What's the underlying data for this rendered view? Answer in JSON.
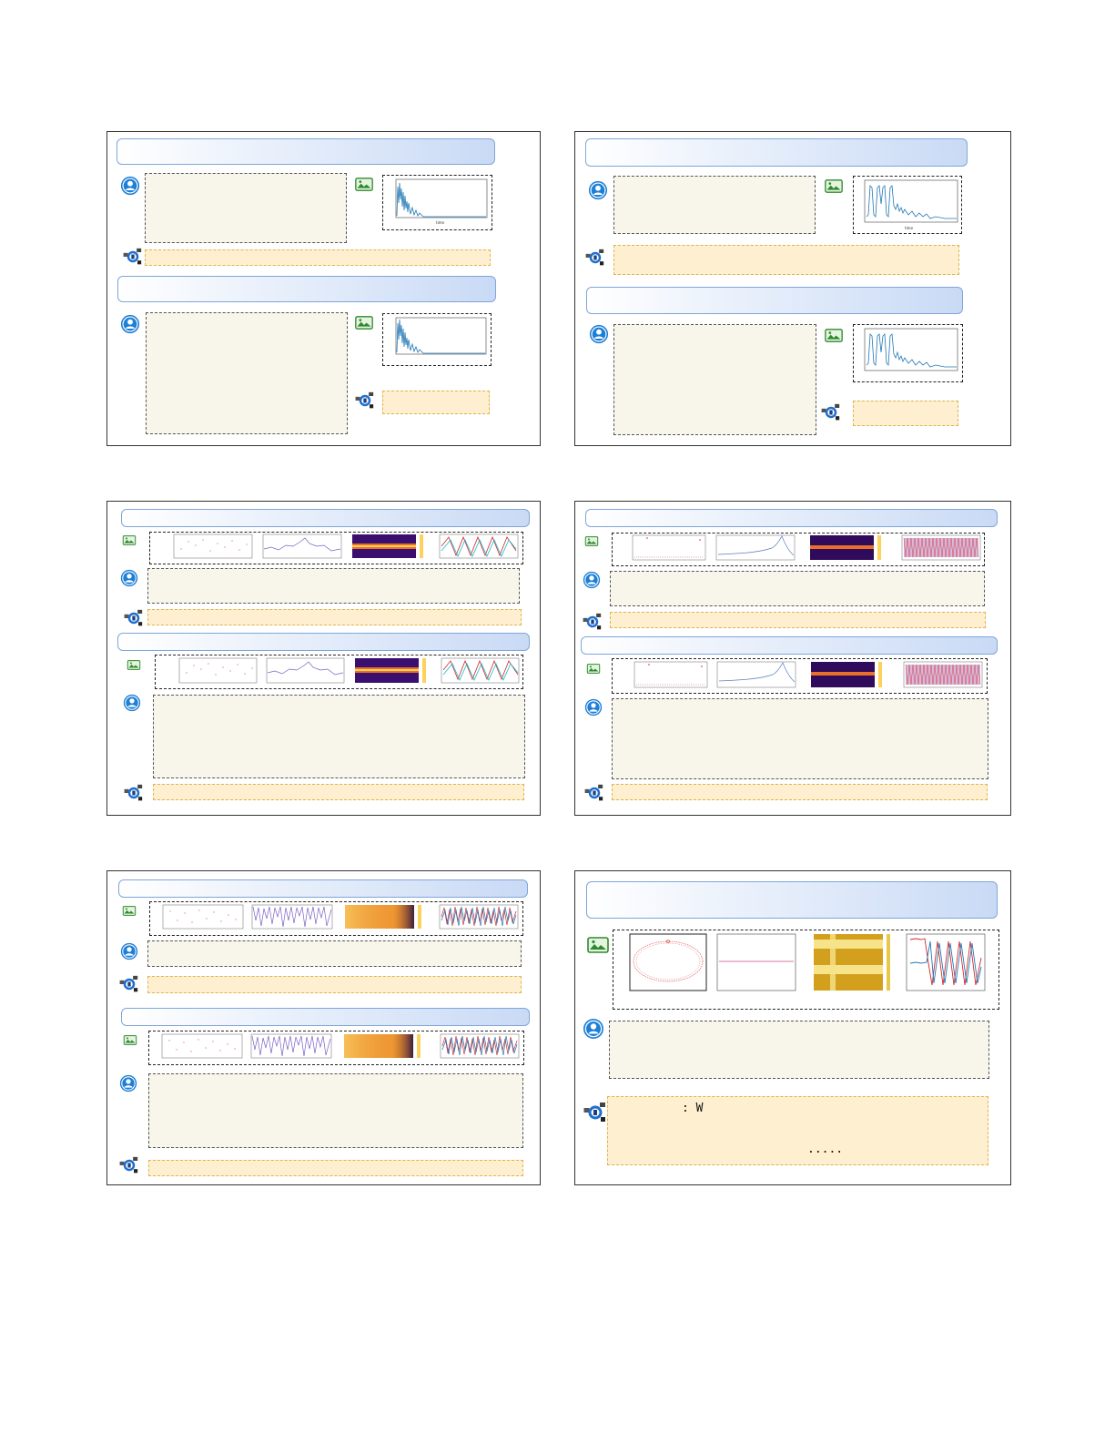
{
  "panels": [
    {
      "id": "panel-1"
    },
    {
      "id": "panel-2"
    },
    {
      "id": "panel-3"
    },
    {
      "id": "panel-4"
    },
    {
      "id": "panel-5"
    },
    {
      "id": "panel-6"
    }
  ],
  "icons": {
    "user": "user-avatar-icon",
    "image": "image-icon",
    "agent": "robot-agent-icon"
  },
  "last_panel": {
    "answer_line1": ": W",
    "answer_line2": "....."
  },
  "colors": {
    "header_border": "#7fa6da",
    "question_fill": "#f8f6ea",
    "answer_fill": "#fdefd0",
    "answer_border": "#e0b44c",
    "user_icon": "#1e7fd6",
    "image_icon": "#3a9a3a",
    "plot_blue": "#1f77b4",
    "plot_red": "#d62728",
    "plot_purple": "#7b5fc4"
  }
}
